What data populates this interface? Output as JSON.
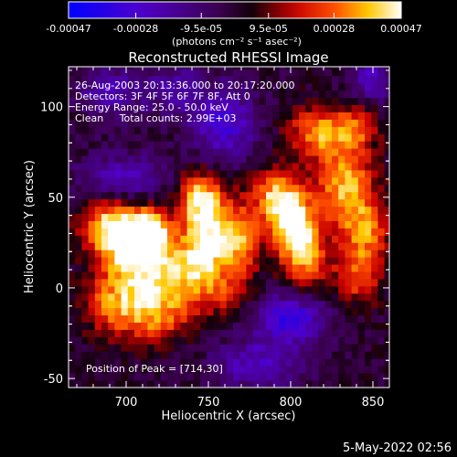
{
  "chart_data": {
    "type": "heatmap",
    "title": "Reconstructed RHESSI Image",
    "xlabel": "Heliocentric X (arcsec)",
    "ylabel": "Heliocentric Y (arcsec)",
    "xlim": [
      665,
      860
    ],
    "ylim": [
      -55,
      122
    ],
    "xticks": [
      700,
      750,
      800,
      850
    ],
    "yticks": [
      -50,
      0,
      50,
      100
    ],
    "colorbar": {
      "ticks": [
        "-0.00047",
        "-0.00028",
        "-9.5e-05",
        "9.5e-05",
        "0.00028",
        "0.00047"
      ],
      "tick_values": [
        -0.00047,
        -0.00028,
        -9.5e-05,
        9.5e-05,
        0.00028,
        0.00047
      ],
      "range": [
        -0.00047,
        0.00047
      ],
      "unit": "(photons cm⁻² s⁻¹ asec⁻²)"
    },
    "annotations": [
      "26-Aug-2003 20:13:36.000 to 20:17:20.000",
      "Detectors: 3F 4F 5F 6F 7F 8F, Att 0",
      "Energy Range: 25.0 - 50.0 keV",
      "Clean     Total counts: 2.99E+03"
    ],
    "peak_label": "Position of Peak = [714,30]",
    "peak": [
      714,
      30
    ],
    "pixel_size_arcsec": 4,
    "sources": [
      {
        "x": 714,
        "y": 30,
        "amp": 0.00047,
        "sx": 9,
        "sy": 9
      },
      {
        "x": 700,
        "y": 20,
        "amp": 0.00036,
        "sx": 14,
        "sy": 18
      },
      {
        "x": 722,
        "y": 6,
        "amp": 0.00032,
        "sx": 14,
        "sy": 12
      },
      {
        "x": 690,
        "y": 35,
        "amp": 0.0003,
        "sx": 12,
        "sy": 10
      },
      {
        "x": 716,
        "y": -16,
        "amp": 0.00028,
        "sx": 16,
        "sy": 10
      },
      {
        "x": 745,
        "y": 50,
        "amp": 0.0004,
        "sx": 10,
        "sy": 10
      },
      {
        "x": 753,
        "y": 30,
        "amp": 0.00034,
        "sx": 12,
        "sy": 12
      },
      {
        "x": 745,
        "y": 12,
        "amp": 0.0003,
        "sx": 10,
        "sy": 14
      },
      {
        "x": 770,
        "y": 26,
        "amp": 0.00026,
        "sx": 8,
        "sy": 14
      },
      {
        "x": 800,
        "y": 38,
        "amp": 0.00042,
        "sx": 10,
        "sy": 12
      },
      {
        "x": 808,
        "y": 18,
        "amp": 0.00034,
        "sx": 10,
        "sy": 14
      },
      {
        "x": 790,
        "y": 52,
        "amp": 0.0003,
        "sx": 10,
        "sy": 10
      },
      {
        "x": 833,
        "y": 58,
        "amp": 0.00036,
        "sx": 12,
        "sy": 16
      },
      {
        "x": 845,
        "y": 30,
        "amp": 0.0003,
        "sx": 10,
        "sy": 14
      },
      {
        "x": 815,
        "y": 86,
        "amp": 0.0003,
        "sx": 12,
        "sy": 10
      },
      {
        "x": 838,
        "y": 88,
        "amp": 0.00024,
        "sx": 10,
        "sy": 8
      },
      {
        "x": 840,
        "y": 5,
        "amp": 0.00022,
        "sx": 10,
        "sy": 10
      },
      {
        "x": 690,
        "y": -10,
        "amp": 0.0002,
        "sx": 12,
        "sy": 10
      },
      {
        "x": 762,
        "y": -2,
        "amp": 0.00016,
        "sx": 10,
        "sy": 10
      },
      {
        "x": 700,
        "y": 60,
        "amp": -0.00026,
        "sx": 18,
        "sy": 10
      },
      {
        "x": 760,
        "y": 90,
        "amp": -0.0003,
        "sx": 14,
        "sy": 14
      },
      {
        "x": 800,
        "y": -16,
        "amp": -0.00034,
        "sx": 16,
        "sy": 10
      },
      {
        "x": 780,
        "y": -42,
        "amp": -0.00024,
        "sx": 20,
        "sy": 10
      },
      {
        "x": 690,
        "y": 108,
        "amp": -0.00022,
        "sx": 14,
        "sy": 10
      },
      {
        "x": 850,
        "y": 115,
        "amp": -0.00024,
        "sx": 10,
        "sy": 8
      },
      {
        "x": 730,
        "y": 110,
        "amp": -0.00018,
        "sx": 14,
        "sy": 10
      }
    ]
  },
  "footer": {
    "timestamp": "5-May-2022 02:56"
  }
}
